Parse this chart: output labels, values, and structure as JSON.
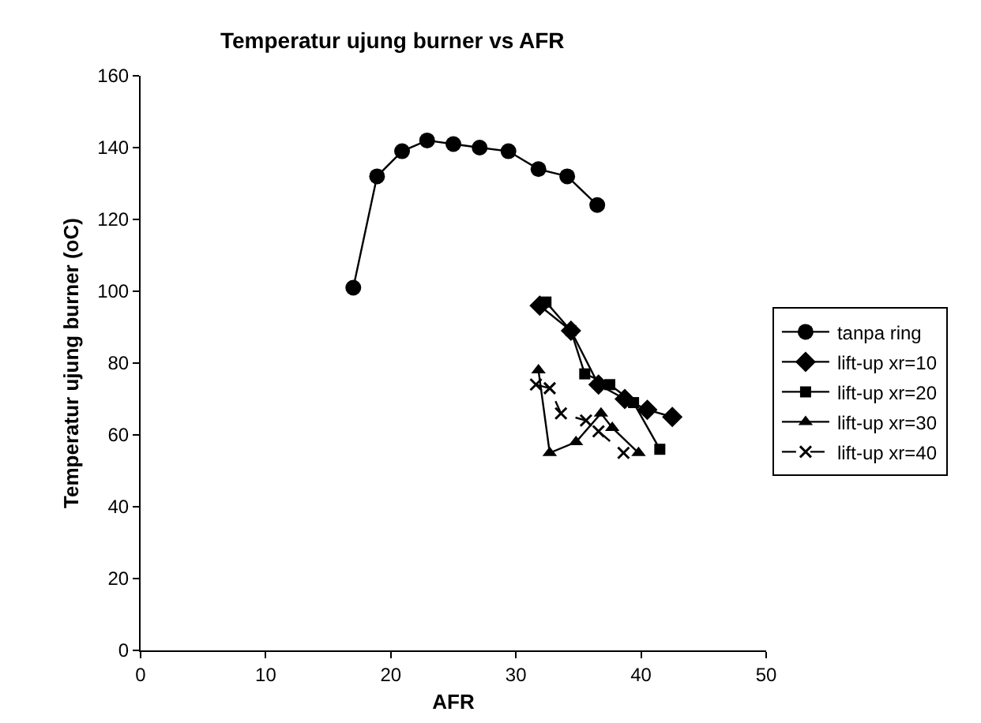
{
  "chart_data": {
    "type": "line",
    "title": "Temperatur ujung burner vs AFR",
    "xlabel": "AFR",
    "ylabel": "Temperatur ujung burner (oC)",
    "xlim": [
      0,
      50
    ],
    "xticks": [
      0,
      10,
      20,
      30,
      40,
      50
    ],
    "ylim": [
      0,
      160
    ],
    "yticks": [
      0,
      20,
      40,
      60,
      80,
      100,
      120,
      140,
      160
    ],
    "grid": false,
    "legend": "right",
    "series": [
      {
        "name": "tanpa ring",
        "color": "#000000",
        "marker": "circle",
        "line_style": "solid",
        "x": [
          17.0,
          18.9,
          20.9,
          22.9,
          25.0,
          27.1,
          29.4,
          31.8,
          34.1,
          36.5
        ],
        "values": [
          101,
          132,
          139,
          142,
          141,
          140,
          139,
          134,
          132,
          124
        ]
      },
      {
        "name": "lift-up xr=10",
        "color": "#000000",
        "marker": "diamond",
        "line_style": "solid",
        "x": [
          31.9,
          34.4,
          36.6,
          38.7,
          40.5,
          42.5
        ],
        "values": [
          96,
          89,
          74,
          70,
          67,
          65
        ]
      },
      {
        "name": "lift-up xr=20",
        "color": "#000000",
        "marker": "square",
        "line_style": "solid",
        "x": [
          32.4,
          34.4,
          35.5,
          37.5,
          39.4,
          41.5
        ],
        "values": [
          97,
          89,
          77,
          74,
          69,
          56
        ]
      },
      {
        "name": "lift-up xr=30",
        "color": "#000000",
        "marker": "triangle",
        "line_style": "solid",
        "x": [
          31.8,
          32.7,
          34.8,
          36.8,
          37.7,
          39.8
        ],
        "values": [
          78,
          55,
          58,
          66,
          62,
          55
        ]
      },
      {
        "name": "lift-up xr=40",
        "color": "#000000",
        "marker": "cross",
        "line_style": "dashed",
        "x": [
          31.6,
          32.7,
          33.6,
          35.6,
          36.6,
          38.6
        ],
        "values": [
          74,
          73,
          66,
          64,
          61,
          55
        ]
      }
    ]
  }
}
